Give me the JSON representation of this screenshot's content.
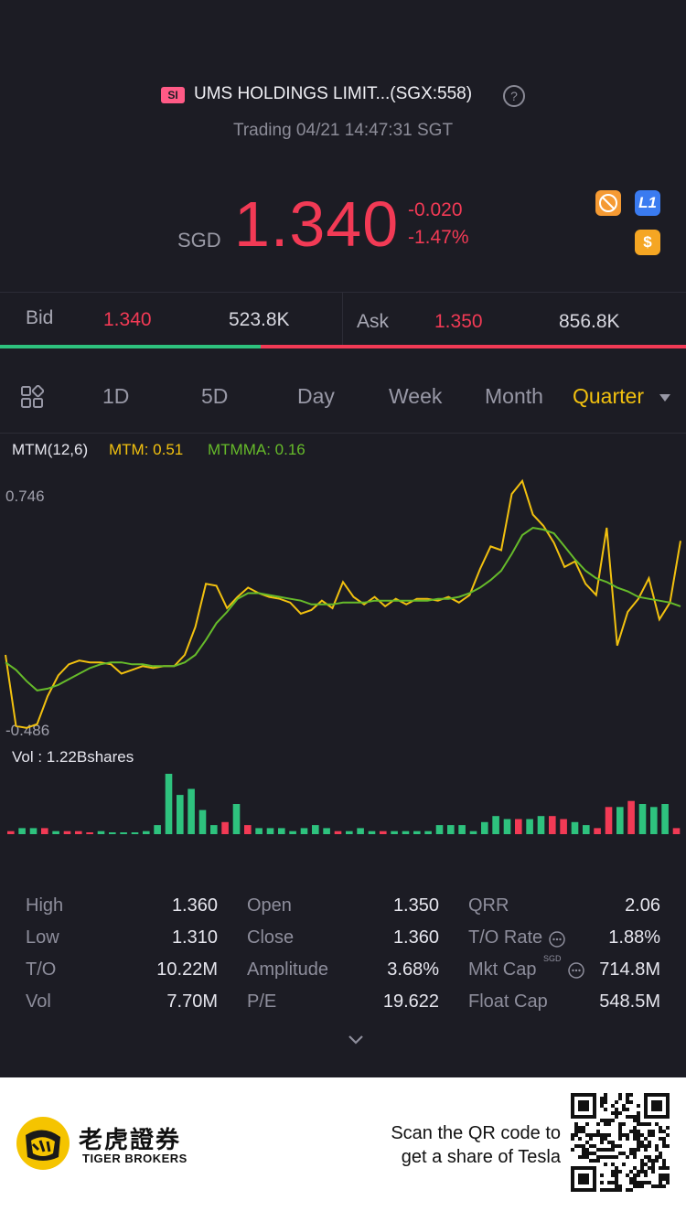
{
  "header": {
    "market_badge": "SI",
    "title": "UMS HOLDINGS LIMIT...(SGX:558)",
    "help_icon": "question-circle-icon",
    "status": "Trading 04/21 14:47:31 SGT",
    "currency": "SGD",
    "price": "1.340",
    "change": "-0.020",
    "change_pct": "-1.47%",
    "icons": [
      "no-short-icon",
      "level1-icon",
      "usd-icon"
    ],
    "level1_label": "L1",
    "usd_label": "$"
  },
  "quote": {
    "bid_label": "Bid",
    "bid_price": "1.340",
    "bid_size": "523.8K",
    "ask_label": "Ask",
    "ask_price": "1.350",
    "ask_size": "856.8K",
    "bid_share": 0.38
  },
  "tabs": {
    "items": [
      "1D",
      "5D",
      "Day",
      "Week",
      "Month",
      "Quarter"
    ],
    "active": "Quarter"
  },
  "indicator": {
    "name": "MTM(12,6)",
    "mtm_label": "MTM: 0.51",
    "mtmma_label": "MTMMA: 0.16",
    "y_top": "0.746",
    "y_bottom": "-0.486",
    "colors": {
      "mtm": "#f2c10f",
      "mtmma": "#66bb2a"
    }
  },
  "volume": {
    "label": "Vol  : 1.22Bshares"
  },
  "chart_data": [
    {
      "type": "line",
      "title": "MTM(12,6)",
      "ylim": [
        -0.486,
        0.746
      ],
      "series": [
        {
          "name": "MTM",
          "values": [
            -0.1,
            -0.48,
            -0.49,
            -0.47,
            -0.32,
            -0.21,
            -0.15,
            -0.13,
            -0.14,
            -0.14,
            -0.15,
            -0.2,
            -0.18,
            -0.16,
            -0.17,
            -0.16,
            -0.16,
            -0.1,
            0.05,
            0.28,
            0.27,
            0.15,
            0.21,
            0.26,
            0.23,
            0.21,
            0.2,
            0.18,
            0.12,
            0.14,
            0.19,
            0.15,
            0.29,
            0.21,
            0.17,
            0.21,
            0.16,
            0.2,
            0.17,
            0.2,
            0.2,
            0.19,
            0.21,
            0.18,
            0.22,
            0.36,
            0.48,
            0.46,
            0.76,
            0.83,
            0.65,
            0.59,
            0.5,
            0.37,
            0.4,
            0.28,
            0.22,
            0.58,
            -0.05,
            0.13,
            0.2,
            0.31,
            0.09,
            0.18,
            0.51
          ]
        },
        {
          "name": "MTMMA",
          "values": [
            -0.14,
            -0.18,
            -0.24,
            -0.29,
            -0.28,
            -0.26,
            -0.23,
            -0.2,
            -0.17,
            -0.15,
            -0.14,
            -0.14,
            -0.15,
            -0.15,
            -0.16,
            -0.16,
            -0.16,
            -0.14,
            -0.1,
            -0.02,
            0.07,
            0.13,
            0.2,
            0.23,
            0.23,
            0.22,
            0.21,
            0.2,
            0.19,
            0.17,
            0.17,
            0.17,
            0.18,
            0.18,
            0.18,
            0.19,
            0.19,
            0.19,
            0.19,
            0.19,
            0.19,
            0.2,
            0.2,
            0.21,
            0.23,
            0.26,
            0.3,
            0.35,
            0.44,
            0.54,
            0.58,
            0.57,
            0.55,
            0.48,
            0.41,
            0.35,
            0.31,
            0.29,
            0.26,
            0.24,
            0.21,
            0.2,
            0.19,
            0.18,
            0.16
          ]
        }
      ]
    },
    {
      "type": "bar",
      "title": "Vol",
      "values": [
        1,
        2,
        2,
        2,
        1,
        1,
        1,
        0,
        1,
        0,
        0,
        0,
        1,
        3,
        20,
        13,
        15,
        8,
        3,
        4,
        10,
        3,
        2,
        2,
        2,
        1,
        2,
        3,
        2,
        1,
        1,
        2,
        1,
        1,
        1,
        1,
        1,
        1,
        3,
        3,
        3,
        1,
        4,
        6,
        5,
        5,
        5,
        6,
        6,
        5,
        4,
        3,
        2,
        9,
        9,
        11,
        10,
        9,
        10,
        2
      ],
      "up": [
        false,
        true,
        true,
        false,
        true,
        false,
        false,
        false,
        true,
        true,
        true,
        true,
        true,
        true,
        true,
        true,
        true,
        true,
        true,
        false,
        true,
        false,
        true,
        true,
        true,
        true,
        true,
        true,
        true,
        false,
        true,
        true,
        true,
        false,
        true,
        true,
        true,
        true,
        true,
        true,
        true,
        true,
        true,
        true,
        true,
        false,
        true,
        true,
        false,
        false,
        true,
        true,
        false,
        false,
        true,
        false,
        true,
        true,
        true,
        false
      ]
    }
  ],
  "stats": {
    "col1": [
      [
        "High",
        "1.360"
      ],
      [
        "Low",
        "1.310"
      ],
      [
        "T/O",
        "10.22M"
      ],
      [
        "Vol",
        "7.70M"
      ]
    ],
    "col2": [
      [
        "Open",
        "1.350"
      ],
      [
        "Close",
        "1.360"
      ],
      [
        "Amplitude",
        "3.68%"
      ],
      [
        "P/E",
        "19.622"
      ]
    ],
    "col3": [
      [
        "QRR",
        "2.06"
      ],
      [
        "T/O Rate",
        "1.88%"
      ],
      [
        "Mkt Cap",
        "714.8M"
      ],
      [
        "Float Cap",
        "548.5M"
      ]
    ],
    "mktcap_unit": "SGD"
  },
  "promo": {
    "brand_cn": "老虎證券",
    "brand_en": "TIGER BROKERS",
    "line1": "Scan the QR code to",
    "line2": "get a share of Tesla"
  }
}
